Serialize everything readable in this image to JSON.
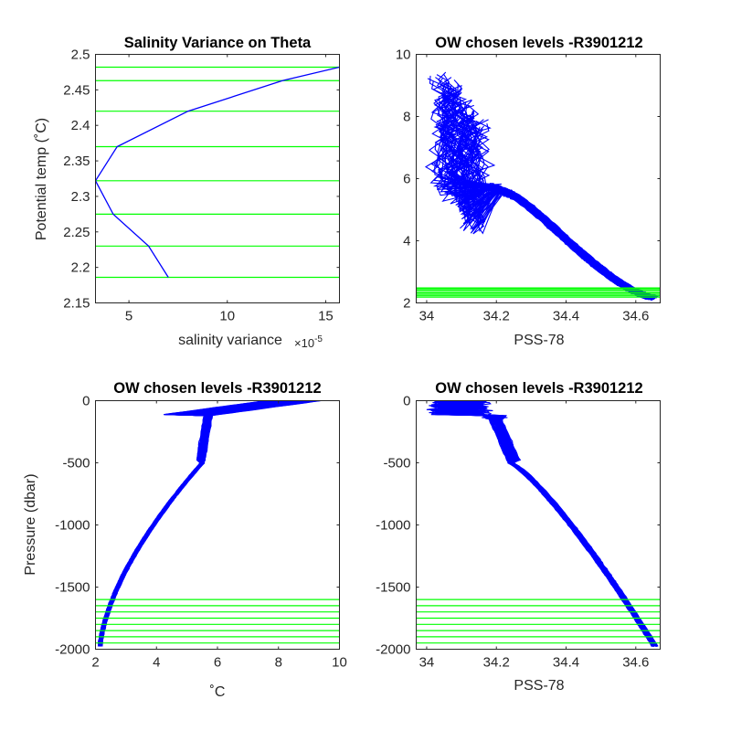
{
  "figure": {
    "colors": {
      "profile": "#0000ff",
      "level": "#00ff00",
      "axis": "#262626",
      "background": "#ffffff"
    }
  },
  "chart_data": [
    {
      "id": "p1",
      "type": "line",
      "title": "Salinity Variance on Theta",
      "xlabel": "salinity variance",
      "xexponent": "×10",
      "xexponent_power": "-5",
      "ylabel": "Potential temp (˚C)",
      "xlim": [
        3.3,
        15.7
      ],
      "ylim": [
        2.15,
        2.5
      ],
      "xticks": [
        5,
        10,
        15
      ],
      "xtick_labels": [
        "5",
        "10",
        "15"
      ],
      "yticks": [
        2.15,
        2.2,
        2.25,
        2.3,
        2.35,
        2.4,
        2.45,
        2.5
      ],
      "ytick_labels": [
        "2.15",
        "2.2",
        "2.25",
        "2.3",
        "2.35",
        "2.4",
        "2.45",
        "2.5"
      ],
      "series": [
        {
          "x": [
            7.0,
            6.0,
            4.2,
            3.3,
            4.4,
            8.0,
            12.8,
            15.7
          ],
          "y": [
            2.186,
            2.23,
            2.275,
            2.322,
            2.37,
            2.42,
            2.463,
            2.482
          ]
        }
      ],
      "hlines": [
        2.186,
        2.23,
        2.275,
        2.322,
        2.37,
        2.42,
        2.463,
        2.482
      ]
    },
    {
      "id": "p2",
      "type": "line",
      "title": "OW chosen levels -R3901212",
      "xlabel": "PSS-78",
      "ylabel": "",
      "xlim": [
        33.97,
        34.67
      ],
      "ylim": [
        2,
        10
      ],
      "xticks": [
        34,
        34.2,
        34.4,
        34.6
      ],
      "xtick_labels": [
        "34",
        "34.2",
        "34.4",
        "34.6"
      ],
      "yticks": [
        2,
        4,
        6,
        8,
        10
      ],
      "ytick_labels": [
        "2",
        "4",
        "6",
        "8",
        "10"
      ],
      "profiles": "salinity-theta",
      "hlines": [
        2.186,
        2.23,
        2.275,
        2.322,
        2.37,
        2.42,
        2.463,
        2.482
      ]
    },
    {
      "id": "p3",
      "type": "line",
      "title": "OW chosen levels -R3901212",
      "xlabel": "˚C",
      "ylabel": "Pressure (dbar)",
      "xlim": [
        2,
        10
      ],
      "ylim": [
        -2000,
        0
      ],
      "xticks": [
        2,
        4,
        6,
        8,
        10
      ],
      "xtick_labels": [
        "2",
        "4",
        "6",
        "8",
        "10"
      ],
      "yticks": [
        -2000,
        -1500,
        -1000,
        -500,
        0
      ],
      "ytick_labels": [
        "-2000",
        "-1500",
        "-1000",
        "-500",
        "0"
      ],
      "profiles": "theta-pressure",
      "hlines": [
        -1600,
        -1650,
        -1700,
        -1750,
        -1800,
        -1850,
        -1900,
        -1950
      ]
    },
    {
      "id": "p4",
      "type": "line",
      "title": "OW chosen levels -R3901212",
      "xlabel": "PSS-78",
      "ylabel": "",
      "xlim": [
        33.97,
        34.67
      ],
      "ylim": [
        -2000,
        0
      ],
      "xticks": [
        34,
        34.2,
        34.4,
        34.6
      ],
      "xtick_labels": [
        "34",
        "34.2",
        "34.4",
        "34.6"
      ],
      "yticks": [
        -2000,
        -1500,
        -1000,
        -500,
        0
      ],
      "ytick_labels": [
        "-2000",
        "-1500",
        "-1000",
        "-500",
        "0"
      ],
      "profiles": "salinity-pressure",
      "hlines": [
        -1600,
        -1650,
        -1700,
        -1750,
        -1800,
        -1850,
        -1900,
        -1950
      ]
    }
  ]
}
